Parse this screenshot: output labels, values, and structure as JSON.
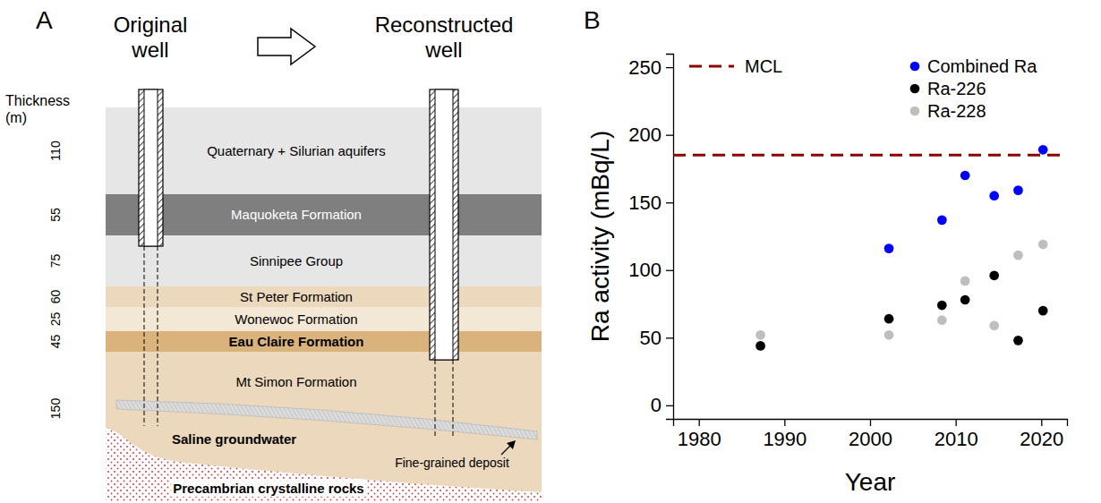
{
  "panel_a": {
    "letter": "A",
    "thickness_label": "Thickness (m)",
    "wells": [
      "Original well",
      "Reconstructed well"
    ],
    "layers": [
      {
        "name": "Quaternary + Silurian aquifers",
        "thickness": 110,
        "color": "#e6e6e6"
      },
      {
        "name": "Maquoketa Formation",
        "thickness": 55,
        "color": "#7f7f7f"
      },
      {
        "name": "Sinnipee Group",
        "thickness": 75,
        "color": "#e6e6e6"
      },
      {
        "name": "St Peter Formation",
        "thickness": 60,
        "color": "#ebd8bd"
      },
      {
        "name": "Wonewoc Formation",
        "thickness": 25,
        "color": "#f3e7d6"
      },
      {
        "name": "Eau Claire Formation",
        "thickness": 45,
        "color": "#d9b27c",
        "bold": true
      },
      {
        "name": "Mt Simon Formation",
        "thickness": 150,
        "color": "#ebd8bd"
      }
    ],
    "saline_label": "Saline groundwater",
    "deposit_label": "Fine-grained deposit",
    "basement_label": "Precambrian crystalline rocks"
  },
  "chart_data": {
    "type": "scatter",
    "panel_label": "B",
    "x_label": "Year",
    "y_label": "Ra activity (mBq/L)",
    "x": [
      1987.2,
      2002.2,
      2008.4,
      2011.1,
      2014.5,
      2017.3,
      2020.2
    ],
    "series": [
      {
        "name": "Combined Ra",
        "color": "#0000ff",
        "marker": "circle",
        "values": [
          null,
          116,
          137,
          170,
          155,
          159,
          189
        ]
      },
      {
        "name": "Ra-226",
        "color": "#000000",
        "marker": "circle",
        "values": [
          44,
          64,
          74,
          78,
          96,
          48,
          70
        ]
      },
      {
        "name": "Ra-228",
        "color": "#bebebe",
        "marker": "circle",
        "values": [
          52,
          52,
          63,
          92,
          59,
          111,
          119
        ]
      }
    ],
    "reference_lines": [
      {
        "name": "MCL",
        "value": 185,
        "color": "#8b0000",
        "line_style": "dashed"
      }
    ],
    "xlim": [
      1977,
      2023
    ],
    "xticks": [
      1980,
      1990,
      2000,
      2010,
      2020
    ],
    "ylim": [
      -10,
      260
    ],
    "yticks": [
      0,
      50,
      100,
      150,
      200,
      250
    ],
    "grid": false,
    "legend": "top"
  }
}
